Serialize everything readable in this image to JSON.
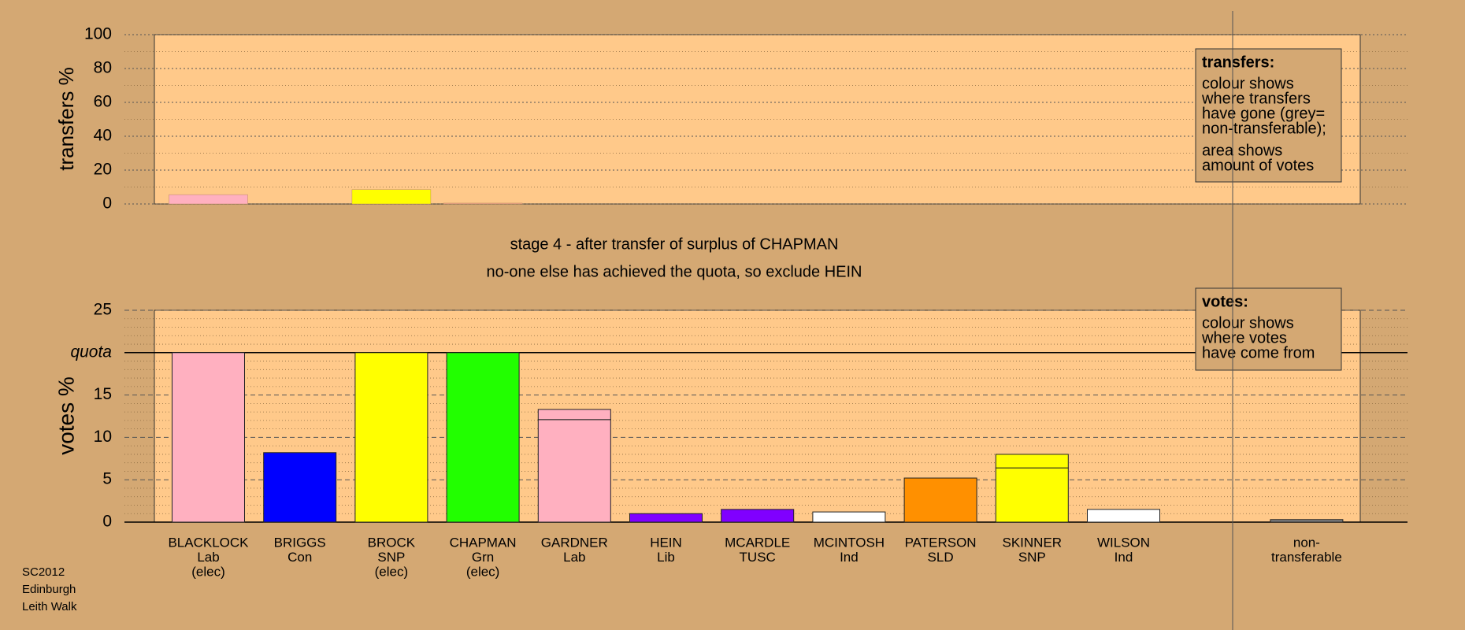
{
  "chart_data": [
    {
      "type": "bar",
      "ylabel": "transfers %",
      "ylim": [
        0,
        100
      ],
      "yticks": [
        0,
        20,
        40,
        60,
        80,
        100
      ],
      "minor_ystep": 10,
      "values": [
        5.5,
        0,
        8.5,
        0.5,
        0,
        0,
        0,
        0,
        0,
        0,
        0,
        0,
        0
      ],
      "colors": [
        "#ffb0c0",
        "#0000ff",
        "#ffff00",
        "#f0a890",
        "#ffb0c0",
        "#8000ff",
        "#8000ff",
        "#ffffff",
        "#ff9000",
        "#ffff00",
        "#ffffff",
        "#808080",
        "#808080"
      ],
      "note": {
        "heading": "transfers:",
        "lines": [
          "colour shows",
          "where transfers",
          "have gone (grey=",
          "non-transferable);",
          "area shows",
          "amount of votes"
        ]
      }
    },
    {
      "type": "stacked-bar",
      "ylabel": "votes %",
      "ylim": [
        0,
        25
      ],
      "yticks": [
        0,
        5,
        10,
        15,
        {
          "value": 20,
          "label": "quota"
        },
        25
      ],
      "minor_ystep": 1,
      "categories": [
        [
          "BLACKLOCK",
          "Lab",
          "(elec)"
        ],
        [
          "BRIGGS",
          "Con"
        ],
        [
          "BROCK",
          "SNP",
          "(elec)"
        ],
        [
          "CHAPMAN",
          "Grn",
          "(elec)"
        ],
        [
          "GARDNER",
          "Lab"
        ],
        [
          "HEIN",
          "Lib"
        ],
        [
          "MCARDLE",
          "TUSC"
        ],
        [
          "MCINTOSH",
          "Ind"
        ],
        [
          "PATERSON",
          "SLD"
        ],
        [
          "SKINNER",
          "SNP"
        ],
        [
          "WILSON",
          "Ind"
        ],
        null,
        [
          "non-",
          "transferable"
        ]
      ],
      "stacks": [
        [
          {
            "value": 20,
            "color": "#ffb0c0"
          }
        ],
        [
          {
            "value": 8.2,
            "color": "#0000ff"
          }
        ],
        [
          {
            "value": 20,
            "color": "#ffff00"
          }
        ],
        [
          {
            "value": 20,
            "color": "#22ff00"
          }
        ],
        [
          {
            "value": 12.1,
            "color": "#ffb0c0"
          },
          {
            "value": 1.2,
            "color": "#ffb0c0"
          }
        ],
        [
          {
            "value": 1.0,
            "color": "#8000ff"
          }
        ],
        [
          {
            "value": 1.5,
            "color": "#8000ff"
          }
        ],
        [
          {
            "value": 1.2,
            "color": "#ffffff"
          }
        ],
        [
          {
            "value": 5.2,
            "color": "#ff9000"
          }
        ],
        [
          {
            "value": 6.4,
            "color": "#ffff00"
          },
          {
            "value": 1.6,
            "color": "#ffff00"
          }
        ],
        [
          {
            "value": 1.5,
            "color": "#ffffff"
          }
        ],
        [],
        [
          {
            "value": 0.3,
            "color": "#808080"
          }
        ]
      ],
      "note": {
        "heading": "votes:",
        "lines": [
          "colour shows",
          "where votes",
          "have come from"
        ]
      }
    }
  ],
  "captions": [
    "stage 4 - after transfer of surplus of CHAPMAN",
    "no-one else has achieved the quota, so exclude HEIN"
  ],
  "footer": [
    "SC2012",
    "Edinburgh",
    "Leith Walk"
  ]
}
